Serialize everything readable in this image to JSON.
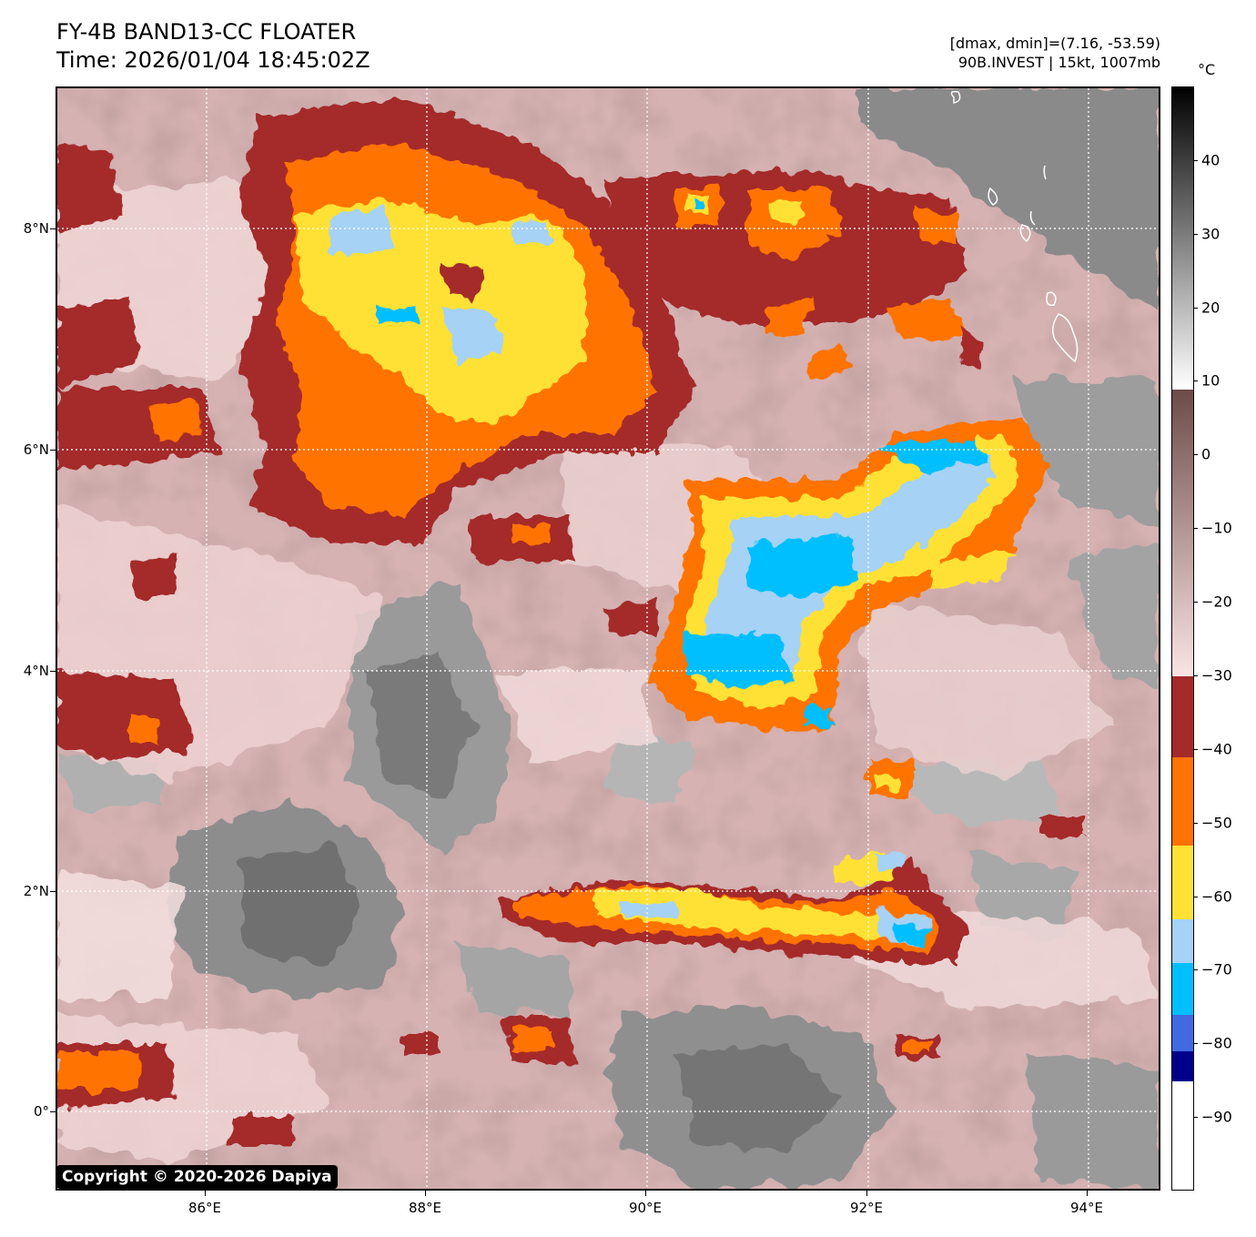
{
  "header": {
    "title_line1": "FY-4B BAND13-CC FLOATER",
    "title_line2": "Time: 2026/01/04 18:45:02Z",
    "meta_line1": "[dmax, dmin]=(7.16, -53.59)",
    "meta_line2": "90B.INVEST | 15kt, 1007mb"
  },
  "map": {
    "lon_labels": [
      "86°E",
      "88°E",
      "90°E",
      "92°E",
      "94°E"
    ],
    "lat_labels": [
      "8°N",
      "6°N",
      "4°N",
      "2°N",
      "0°"
    ],
    "lon_range": [
      84.65,
      94.65
    ],
    "lat_range": [
      -0.72,
      9.28
    ],
    "gridlines": true,
    "gridline_style": "white dotted"
  },
  "colorbar": {
    "unit": "°C",
    "tick_labels": [
      "40",
      "30",
      "20",
      "10",
      "0",
      "−10",
      "−20",
      "−30",
      "−40",
      "−50",
      "−60",
      "−70",
      "−80",
      "−90"
    ],
    "range": [
      -100,
      50
    ],
    "bands": [
      {
        "from": -100,
        "to": -85,
        "color": "#ffffff"
      },
      {
        "from": -85,
        "to": -81,
        "color": "#00008b"
      },
      {
        "from": -81,
        "to": -76,
        "color": "#4169e1"
      },
      {
        "from": -76,
        "to": -69,
        "color": "#00bfff"
      },
      {
        "from": -69,
        "to": -63,
        "color": "#a6d2f5"
      },
      {
        "from": -63,
        "to": -53,
        "color": "#ffe135"
      },
      {
        "from": -53,
        "to": -41,
        "color": "#ff7300"
      },
      {
        "from": -41,
        "to": -30,
        "color": "#a52a2a"
      },
      {
        "from": -30,
        "to": 9,
        "gradient": [
          "#fbe4e4",
          "#6e4a4a"
        ]
      },
      {
        "from": 9,
        "to": 50,
        "gradient": [
          "#ffffff",
          "#000000"
        ]
      }
    ]
  },
  "footer": {
    "copyright": "Copyright © 2020-2026 Dapiya"
  }
}
